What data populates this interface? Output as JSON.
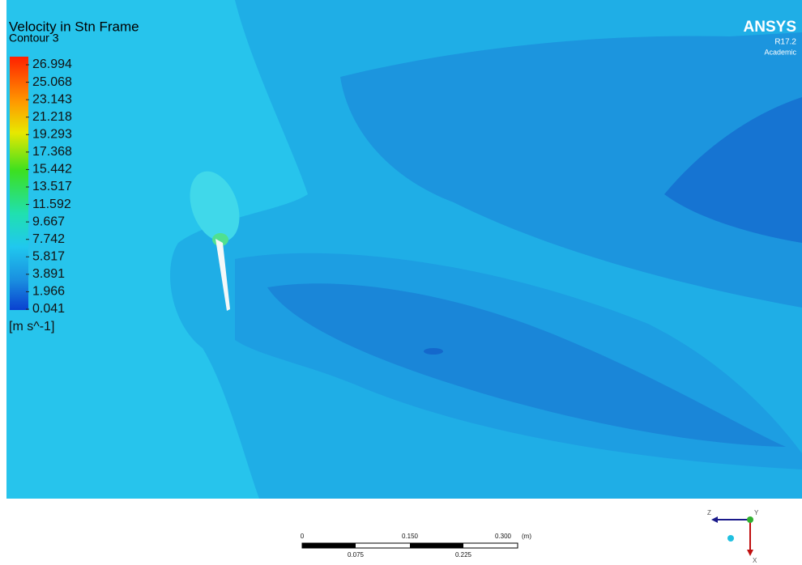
{
  "legend": {
    "title": "Velocity in Stn Frame",
    "subtitle": "Contour 3",
    "levels": [
      "26.994",
      "25.068",
      "23.143",
      "21.218",
      "19.293",
      "17.368",
      "15.442",
      "13.517",
      "11.592",
      "9.667",
      "7.742",
      "5.817",
      "3.891",
      "1.966",
      "0.041"
    ],
    "unit": "[m s^-1]"
  },
  "logo": {
    "name": "ANSYS",
    "version": "R17.2",
    "edition": "Academic"
  },
  "scale_bar": {
    "top_labels": [
      "0",
      "0.150",
      "0.300"
    ],
    "unit": "(m)",
    "bottom_labels": [
      "0.075",
      "0.225"
    ]
  },
  "triad": {
    "z": "Z",
    "y": "Y",
    "x": "X"
  }
}
